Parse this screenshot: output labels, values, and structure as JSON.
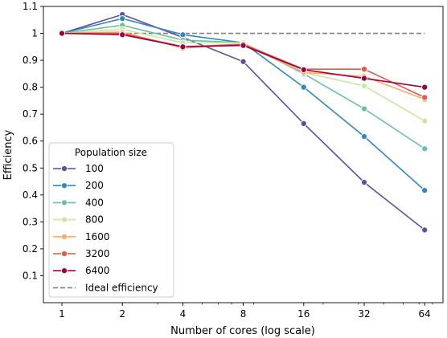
{
  "chart_data": {
    "type": "line",
    "title": "",
    "xlabel": "Number of cores (log scale)",
    "ylabel": "Efficiency",
    "x_scale": "log2",
    "x": [
      1,
      2,
      4,
      8,
      16,
      32,
      64
    ],
    "x_ticklabels": [
      "1",
      "2",
      "4",
      "8",
      "16",
      "32",
      "64"
    ],
    "ylim": [
      0,
      1.1
    ],
    "y_ticks": [
      0.1,
      0.2,
      0.3,
      0.4,
      0.5,
      0.6,
      0.7,
      0.8,
      0.9,
      1.0,
      1.1
    ],
    "y_ticklabels": [
      "0.1",
      "0.2",
      "0.3",
      "0.4",
      "0.5",
      "0.6",
      "0.7",
      "0.8",
      "0.9",
      "1",
      "1.1"
    ],
    "grid": false,
    "legend": {
      "title": "Population size",
      "placement": "lower-left"
    },
    "series": [
      {
        "name": "100",
        "color": "#5e4fa2",
        "values": [
          1.0,
          1.07,
          0.985,
          0.895,
          0.665,
          0.447,
          0.27
        ]
      },
      {
        "name": "200",
        "color": "#3288bd",
        "values": [
          1.0,
          1.055,
          0.995,
          0.965,
          0.8,
          0.617,
          0.417
        ]
      },
      {
        "name": "400",
        "color": "#66c2a5",
        "values": [
          1.0,
          1.03,
          0.975,
          0.965,
          0.85,
          0.72,
          0.572
        ]
      },
      {
        "name": "800",
        "color": "#c7e89d",
        "values": [
          1.0,
          1.015,
          0.965,
          0.965,
          0.855,
          0.805,
          0.675
        ]
      },
      {
        "name": "1600",
        "color": "#fba86b",
        "values": [
          1.0,
          1.005,
          0.945,
          0.96,
          0.855,
          0.84,
          0.755
        ]
      },
      {
        "name": "3200",
        "color": "#e15a46",
        "values": [
          1.0,
          1.0,
          0.95,
          0.96,
          0.867,
          0.867,
          0.762
        ]
      },
      {
        "name": "6400",
        "color": "#9e0142",
        "values": [
          1.0,
          0.995,
          0.95,
          0.955,
          0.865,
          0.833,
          0.8
        ]
      }
    ],
    "reference_line": {
      "name": "Ideal efficiency",
      "value": 1.0,
      "color": "#808080",
      "style": "dashed"
    }
  }
}
